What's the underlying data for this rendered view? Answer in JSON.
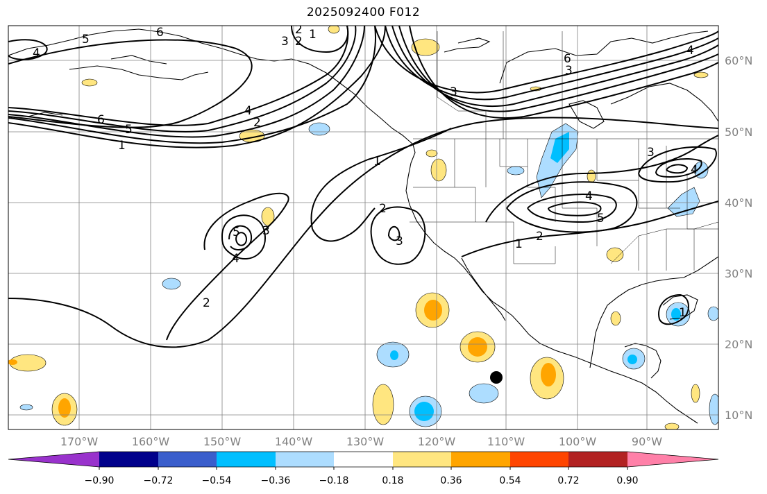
{
  "title": "2025092400 F012",
  "map": {
    "lon_labels": [
      "170°W",
      "160°W",
      "150°W",
      "140°W",
      "130°W",
      "120°W",
      "110°W",
      "100°W",
      "90°W"
    ],
    "lat_labels": [
      "60°N",
      "50°N",
      "40°N",
      "30°N",
      "20°N",
      "10°N"
    ],
    "contour_labels": [
      "4",
      "5",
      "6",
      "1",
      "5",
      "6",
      "1",
      "2",
      "3",
      "4",
      "2",
      "3",
      "4",
      "1",
      "2",
      "3",
      "5",
      "3",
      "4",
      "2",
      "1",
      "2",
      "4",
      "5",
      "6",
      "3",
      "3",
      "4",
      "1",
      "2"
    ],
    "marker": "filled-black-circle"
  },
  "colorbar": {
    "tick_labels": [
      "−0.90",
      "−0.72",
      "−0.54",
      "−0.36",
      "−0.18",
      "0.18",
      "0.36",
      "0.54",
      "0.72",
      "0.90"
    ],
    "colors": [
      "#9932CC",
      "#00008B",
      "#3A5ECC",
      "#00BFFF",
      "#ADDDFF",
      "#FFFFFF",
      "#FFE680",
      "#FFA500",
      "#FF4500",
      "#B22222",
      "#FF80A8"
    ]
  }
}
